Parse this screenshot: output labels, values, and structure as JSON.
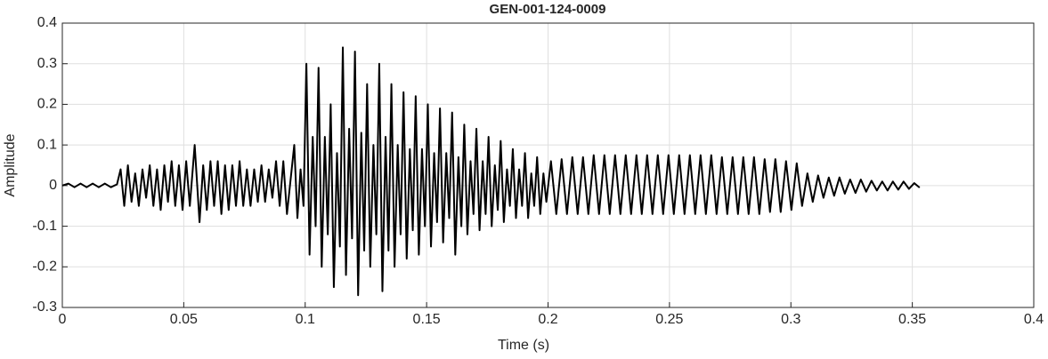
{
  "chart_data": {
    "type": "line",
    "title": "GEN-001-124-0009",
    "x_label": "Time (s)",
    "y_label": "Amplitude",
    "xlim": [
      0,
      0.4
    ],
    "xticks": [
      0,
      0.05,
      0.1,
      0.15,
      0.2,
      0.25,
      0.3,
      0.35,
      0.4
    ],
    "ylim": [
      -0.3,
      0.4
    ],
    "yticks": [
      -0.3,
      -0.2,
      -0.1,
      0,
      0.1,
      0.2,
      0.3,
      0.4
    ],
    "grid": true,
    "series": [
      {
        "color": "#000000",
        "x": [
          0,
          0.0025,
          0.005,
          0.0075,
          0.01,
          0.0125,
          0.015,
          0.0175,
          0.02,
          0.0225,
          0.024,
          0.0255,
          0.027,
          0.0285,
          0.03,
          0.0315,
          0.033,
          0.0345,
          0.036,
          0.0375,
          0.039,
          0.0405,
          0.042,
          0.0435,
          0.045,
          0.0465,
          0.048,
          0.0495,
          0.051,
          0.0525,
          0.0545,
          0.0565,
          0.058,
          0.0595,
          0.061,
          0.0625,
          0.064,
          0.0655,
          0.067,
          0.0685,
          0.07,
          0.0715,
          0.073,
          0.0745,
          0.076,
          0.0775,
          0.079,
          0.0805,
          0.082,
          0.0835,
          0.085,
          0.0865,
          0.088,
          0.0895,
          0.091,
          0.0925,
          0.0955,
          0.0968,
          0.0981,
          0.0993,
          0.1005,
          0.1018,
          0.1031,
          0.1043,
          0.1055,
          0.1068,
          0.1081,
          0.1093,
          0.1105,
          0.1118,
          0.1131,
          0.1143,
          0.1155,
          0.1168,
          0.1181,
          0.1193,
          0.1205,
          0.1218,
          0.1231,
          0.1243,
          0.1255,
          0.1268,
          0.1281,
          0.1293,
          0.1305,
          0.1318,
          0.1331,
          0.1343,
          0.1355,
          0.1368,
          0.1381,
          0.1393,
          0.1405,
          0.1418,
          0.1431,
          0.1443,
          0.1455,
          0.1468,
          0.1481,
          0.1493,
          0.1505,
          0.1518,
          0.1531,
          0.1543,
          0.1555,
          0.1568,
          0.1581,
          0.1593,
          0.1605,
          0.1618,
          0.1631,
          0.1643,
          0.1655,
          0.1668,
          0.1681,
          0.1693,
          0.1705,
          0.1718,
          0.1731,
          0.1743,
          0.1755,
          0.1768,
          0.1781,
          0.1793,
          0.1805,
          0.1818,
          0.1831,
          0.1843,
          0.1855,
          0.1868,
          0.1881,
          0.1893,
          0.1905,
          0.1918,
          0.1931,
          0.1943,
          0.1955,
          0.1968,
          0.1981,
          0.1993,
          0.2012,
          0.2034,
          0.2056,
          0.2078,
          0.21,
          0.2122,
          0.2144,
          0.2166,
          0.2188,
          0.221,
          0.2232,
          0.2254,
          0.2276,
          0.2298,
          0.232,
          0.2342,
          0.2364,
          0.2386,
          0.2408,
          0.243,
          0.2452,
          0.2474,
          0.2496,
          0.2518,
          0.254,
          0.2562,
          0.2584,
          0.2606,
          0.2628,
          0.265,
          0.2672,
          0.2694,
          0.2716,
          0.2738,
          0.276,
          0.2782,
          0.2804,
          0.2826,
          0.2848,
          0.287,
          0.2892,
          0.2914,
          0.2936,
          0.2958,
          0.298,
          0.3002,
          0.3024,
          0.3046,
          0.3068,
          0.309,
          0.3112,
          0.3134,
          0.3156,
          0.3178,
          0.32,
          0.3222,
          0.3244,
          0.3266,
          0.3288,
          0.331,
          0.3332,
          0.3354,
          0.3376,
          0.3398,
          0.342,
          0.3442,
          0.3464,
          0.3486,
          0.3508,
          0.353
        ],
        "values": [
          0,
          0.005,
          -0.004,
          0.005,
          -0.004,
          0.005,
          -0.004,
          0.005,
          -0.004,
          0.003,
          0.04,
          -0.05,
          0.05,
          -0.04,
          0.03,
          -0.05,
          0.04,
          -0.03,
          0.05,
          -0.05,
          0.04,
          -0.06,
          0.05,
          -0.04,
          0.06,
          -0.05,
          0.05,
          -0.06,
          0.06,
          -0.05,
          0.1,
          -0.09,
          0.05,
          -0.06,
          0.06,
          -0.05,
          0.06,
          -0.07,
          0.05,
          -0.06,
          0.05,
          -0.05,
          0.06,
          -0.05,
          0.04,
          -0.05,
          0.04,
          -0.04,
          0.05,
          -0.04,
          0.04,
          -0.03,
          0.06,
          -0.05,
          0.06,
          -0.07,
          0.1,
          -0.08,
          0.04,
          -0.05,
          0.3,
          -0.17,
          0.12,
          -0.1,
          0.29,
          -0.2,
          0.12,
          -0.12,
          0.2,
          -0.25,
          0.08,
          -0.15,
          0.34,
          -0.22,
          0.14,
          -0.13,
          0.33,
          -0.27,
          0.13,
          -0.16,
          0.25,
          -0.2,
          0.1,
          -0.12,
          0.3,
          -0.26,
          0.12,
          -0.16,
          0.25,
          -0.2,
          0.1,
          -0.12,
          0.23,
          -0.18,
          0.09,
          -0.11,
          0.22,
          -0.17,
          0.09,
          -0.1,
          0.2,
          -0.15,
          0.08,
          -0.09,
          0.19,
          -0.14,
          0.08,
          -0.08,
          0.18,
          -0.17,
          0.07,
          -0.1,
          0.15,
          -0.12,
          0.06,
          -0.07,
          0.14,
          -0.11,
          0.06,
          -0.07,
          0.12,
          -0.1,
          0.05,
          -0.06,
          0.11,
          -0.09,
          0.04,
          -0.05,
          0.09,
          -0.08,
          0.04,
          -0.05,
          0.08,
          -0.08,
          0.03,
          -0.05,
          0.07,
          -0.07,
          0.03,
          -0.04,
          0.06,
          -0.07,
          0.065,
          -0.07,
          0.07,
          -0.07,
          0.07,
          -0.07,
          0.075,
          -0.07,
          0.075,
          -0.07,
          0.075,
          -0.07,
          0.075,
          -0.07,
          0.075,
          -0.07,
          0.075,
          -0.07,
          0.075,
          -0.07,
          0.075,
          -0.07,
          0.075,
          -0.07,
          0.075,
          -0.07,
          0.075,
          -0.07,
          0.075,
          -0.07,
          0.07,
          -0.07,
          0.07,
          -0.07,
          0.07,
          -0.07,
          0.07,
          -0.07,
          0.065,
          -0.065,
          0.065,
          -0.065,
          0.06,
          -0.06,
          0.055,
          -0.05,
          0.03,
          -0.04,
          0.025,
          -0.03,
          0.02,
          -0.025,
          0.02,
          -0.02,
          0.015,
          -0.018,
          0.015,
          -0.015,
          0.012,
          -0.012,
          0.01,
          -0.012,
          0.01,
          -0.01,
          0.01,
          -0.008,
          0.006,
          -0.005
        ]
      }
    ]
  }
}
